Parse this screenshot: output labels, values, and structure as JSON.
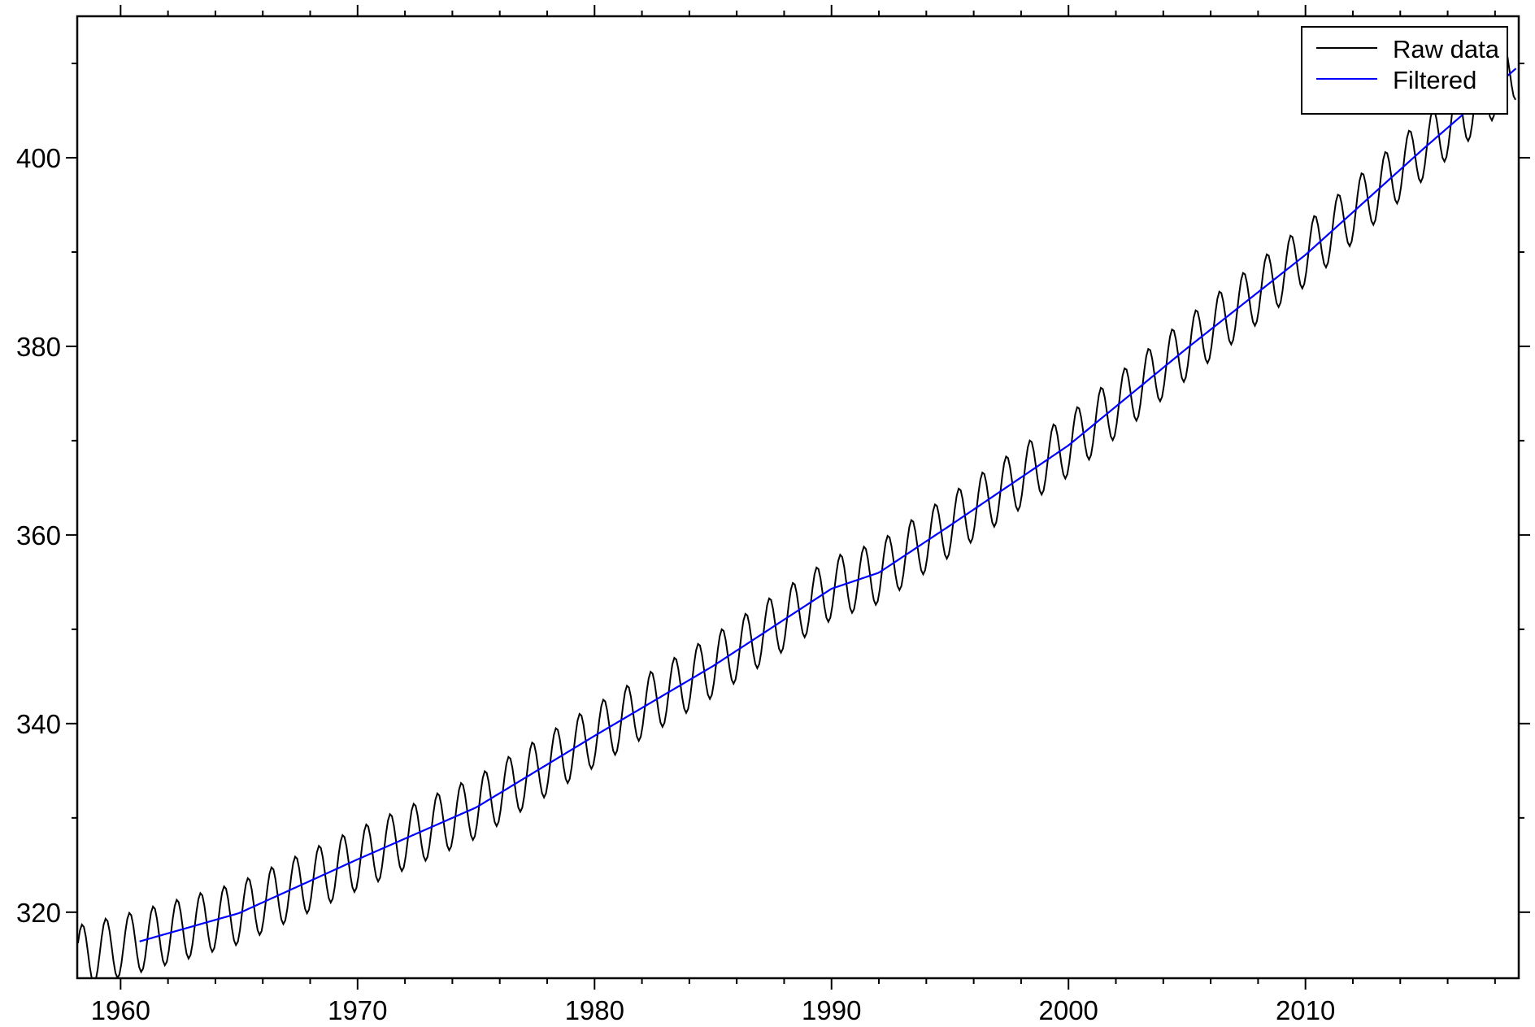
{
  "chart_data": {
    "type": "line",
    "xlim": [
      1958.17,
      2019.0
    ],
    "ylim": [
      313.0,
      415.0
    ],
    "x_major_ticks": [
      1960,
      1970,
      1980,
      1990,
      2000,
      2010
    ],
    "x_minor_step": 2,
    "y_major_ticks": [
      320,
      340,
      360,
      380,
      400
    ],
    "y_minor_step": 10,
    "grid": false,
    "legend_position": "top-right",
    "series": [
      {
        "name": "Raw data",
        "color": "#000000",
        "model": {
          "start": 1958.2,
          "end": 2018.9,
          "step": 0.0833333,
          "trend": [
            [
              1958.2,
              315.3
            ],
            [
              1960.8,
              316.9
            ],
            [
              1965,
              319.9
            ],
            [
              1970,
              325.6
            ],
            [
              1975,
              331.1
            ],
            [
              1980,
              338.7
            ],
            [
              1985,
              346.1
            ],
            [
              1990,
              354.3
            ],
            [
              1992,
              356.0
            ],
            [
              1995,
              361.0
            ],
            [
              2000,
              369.5
            ],
            [
              2005,
              379.8
            ],
            [
              2010,
              389.7
            ],
            [
              2015,
              401.0
            ],
            [
              2018.9,
              409.5
            ]
          ],
          "seasonal_amplitude": 3.3,
          "seasonal_phase_peak": 0.38
        }
      },
      {
        "name": "Filtered",
        "color": "#0000ff",
        "model": {
          "start": 1960.8,
          "end": 2018.9,
          "step": 0.0833333,
          "trend": [
            [
              1960.8,
              316.9
            ],
            [
              1965,
              319.9
            ],
            [
              1970,
              325.6
            ],
            [
              1975,
              331.1
            ],
            [
              1980,
              338.7
            ],
            [
              1985,
              346.1
            ],
            [
              1990,
              354.3
            ],
            [
              1992,
              356.0
            ],
            [
              1995,
              361.0
            ],
            [
              2000,
              369.5
            ],
            [
              2005,
              379.8
            ],
            [
              2010,
              389.7
            ],
            [
              2015,
              401.0
            ],
            [
              2018.9,
              409.5
            ]
          ],
          "seasonal_amplitude": 0,
          "seasonal_phase_peak": 0
        }
      }
    ]
  }
}
